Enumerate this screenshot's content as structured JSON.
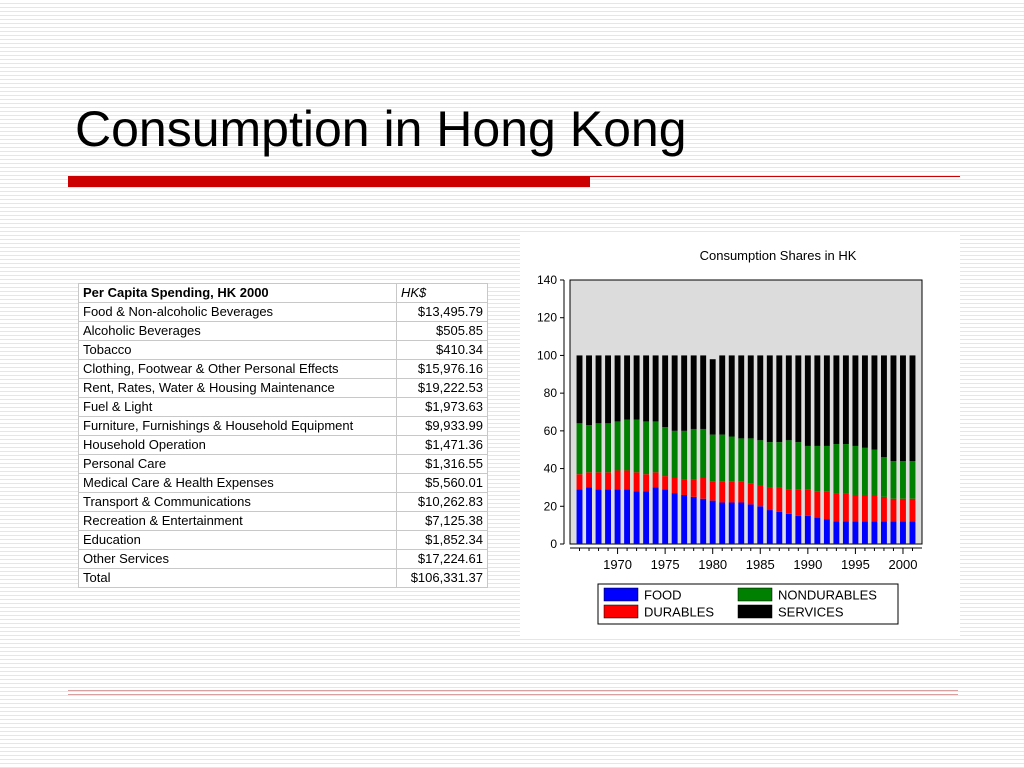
{
  "slide": {
    "title": "Consumption in Hong Kong"
  },
  "table": {
    "header": [
      "Per Capita Spending, HK 2000",
      "HK$"
    ],
    "rows": [
      [
        "Food & Non-alcoholic Beverages",
        "$13,495.79"
      ],
      [
        "Alcoholic Beverages",
        "$505.85"
      ],
      [
        "Tobacco",
        "$410.34"
      ],
      [
        "Clothing, Footwear & Other Personal Effects",
        "$15,976.16"
      ],
      [
        "Rent, Rates, Water & Housing Maintenance",
        "$19,222.53"
      ],
      [
        "Fuel & Light",
        "$1,973.63"
      ],
      [
        "Furniture, Furnishings & Household Equipment",
        "$9,933.99"
      ],
      [
        "Household Operation",
        "$1,471.36"
      ],
      [
        "Personal Care",
        "$1,316.55"
      ],
      [
        "Medical Care & Health Expenses",
        "$5,560.01"
      ],
      [
        "Transport & Communications",
        "$10,262.83"
      ],
      [
        "Recreation & Entertainment",
        "$7,125.38"
      ],
      [
        "Education",
        "$1,852.34"
      ],
      [
        "Other Services",
        "$17,224.61"
      ],
      [
        "Total",
        "$106,331.37"
      ]
    ]
  },
  "colors": {
    "FOOD": "#0000ff",
    "DURABLES": "#ff0000",
    "NONDURABLES": "#008000",
    "SERVICES": "#000000",
    "plot_bg": "#dcdcdc",
    "title_rule": "#cc0000"
  },
  "chart_data": {
    "type": "bar",
    "stacked": true,
    "title": "Consumption Shares in HK",
    "xlabel": "",
    "ylabel": "",
    "ylim": [
      0,
      140
    ],
    "yticks": [
      0,
      20,
      40,
      60,
      80,
      100,
      120,
      140
    ],
    "x": [
      1966,
      1967,
      1968,
      1969,
      1970,
      1971,
      1972,
      1973,
      1974,
      1975,
      1976,
      1977,
      1978,
      1979,
      1980,
      1981,
      1982,
      1983,
      1984,
      1985,
      1986,
      1987,
      1988,
      1989,
      1990,
      1991,
      1992,
      1993,
      1994,
      1995,
      1996,
      1997,
      1998,
      1999,
      2000,
      2001
    ],
    "xticks": [
      1970,
      1975,
      1980,
      1985,
      1990,
      1995,
      2000
    ],
    "grid": false,
    "legend_position": "bottom",
    "legend": [
      "FOOD",
      "NONDURABLES",
      "DURABLES",
      "SERVICES"
    ],
    "series": [
      {
        "name": "FOOD",
        "values": [
          29,
          30,
          29,
          29,
          29,
          29,
          28,
          28,
          30,
          29,
          27,
          26,
          25,
          24,
          23,
          22,
          22,
          22,
          21,
          20,
          18,
          17,
          16,
          15,
          15,
          14,
          13,
          12,
          12,
          12,
          12,
          12,
          12,
          12,
          12,
          12
        ]
      },
      {
        "name": "DURABLES",
        "values": [
          8,
          8,
          9,
          9,
          10,
          10,
          10,
          9,
          8,
          7,
          8,
          8,
          9,
          11,
          10,
          11,
          11,
          11,
          11,
          11,
          12,
          13,
          13,
          14,
          14,
          14,
          15,
          15,
          15,
          14,
          14,
          14,
          13,
          12,
          12,
          12
        ]
      },
      {
        "name": "NONDURABLES",
        "values": [
          27,
          25,
          26,
          26,
          26,
          27,
          28,
          28,
          27,
          26,
          25,
          26,
          27,
          26,
          25,
          25,
          24,
          23,
          24,
          24,
          24,
          24,
          26,
          25,
          23,
          24,
          24,
          26,
          26,
          26,
          25,
          24,
          21,
          20,
          20,
          20
        ]
      },
      {
        "name": "SERVICES",
        "values": [
          36,
          37,
          36,
          36,
          35,
          34,
          34,
          35,
          35,
          38,
          40,
          40,
          39,
          39,
          40,
          42,
          43,
          44,
          44,
          45,
          46,
          46,
          45,
          46,
          48,
          48,
          48,
          47,
          47,
          48,
          49,
          50,
          54,
          56,
          56,
          56
        ]
      }
    ]
  }
}
